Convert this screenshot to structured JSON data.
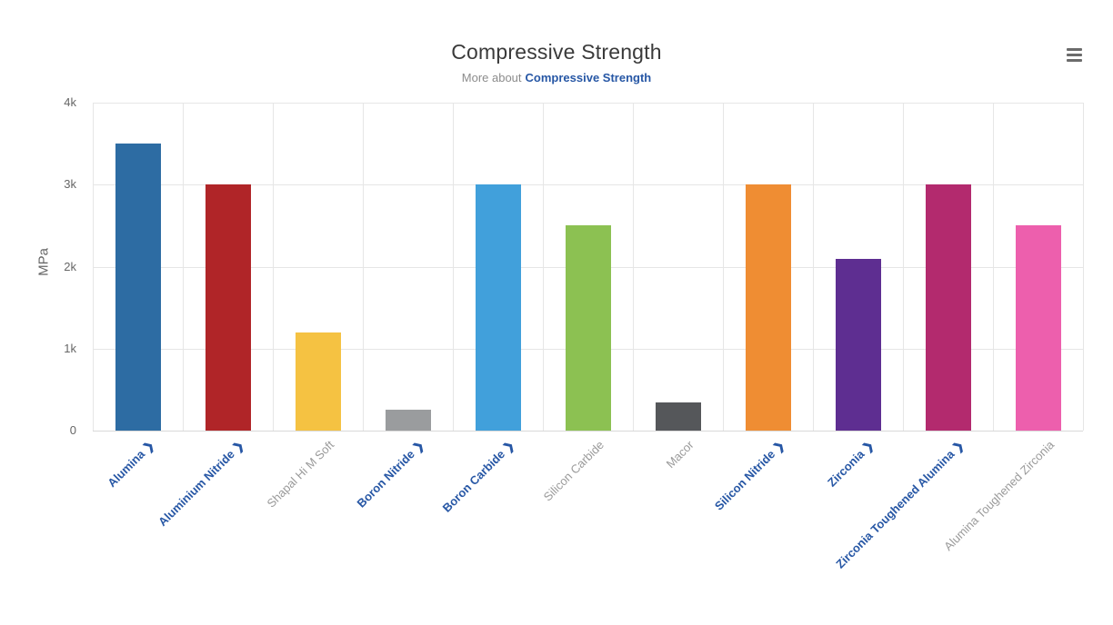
{
  "header": {
    "title": "Compressive Strength",
    "subtitle_prefix": "More about",
    "subtitle_link_text": "Compressive Strength"
  },
  "colors": {
    "title_text": "#3a3a3a",
    "subtitle_text": "#8c8c8c",
    "link_blue": "#2757a5",
    "plain_label_gray": "#9a9a9a",
    "grid_line": "#e6e6e6",
    "axis_line": "#d8d8d8",
    "tick_label": "#666666",
    "menu_icon": "#6b6b6b"
  },
  "chart_data": {
    "type": "bar",
    "title": "Compressive Strength",
    "subtitle": "More about Compressive Strength",
    "xlabel": "",
    "ylabel": "MPa",
    "ylim": [
      0,
      4000
    ],
    "grid": true,
    "legend": "none",
    "yticks": [
      {
        "value": 0,
        "label": "0"
      },
      {
        "value": 1000,
        "label": "1k"
      },
      {
        "value": 2000,
        "label": "2k"
      },
      {
        "value": 3000,
        "label": "3k"
      },
      {
        "value": 4000,
        "label": "4k"
      }
    ],
    "categories": [
      "Alumina",
      "Aluminium Nitride",
      "Shapal Hi M Soft",
      "Boron Nitride",
      "Boron Carbide",
      "Silicon Carbide",
      "Macor",
      "Silicon Nitride",
      "Zirconia",
      "Zirconia Toughened Alumina",
      "Alumina Toughened Zirconia"
    ],
    "category_links": [
      true,
      true,
      false,
      true,
      true,
      false,
      false,
      true,
      true,
      true,
      false
    ],
    "link_suffix": "❯",
    "values": [
      3500,
      3000,
      1200,
      250,
      3000,
      2500,
      345,
      3000,
      2100,
      3000,
      2500
    ],
    "bar_colors": [
      "#2d6ca3",
      "#b02528",
      "#f5c242",
      "#9a9c9e",
      "#41a0db",
      "#8cc152",
      "#55575a",
      "#ef8d33",
      "#5e2e91",
      "#b32a6e",
      "#ed5fad"
    ]
  }
}
